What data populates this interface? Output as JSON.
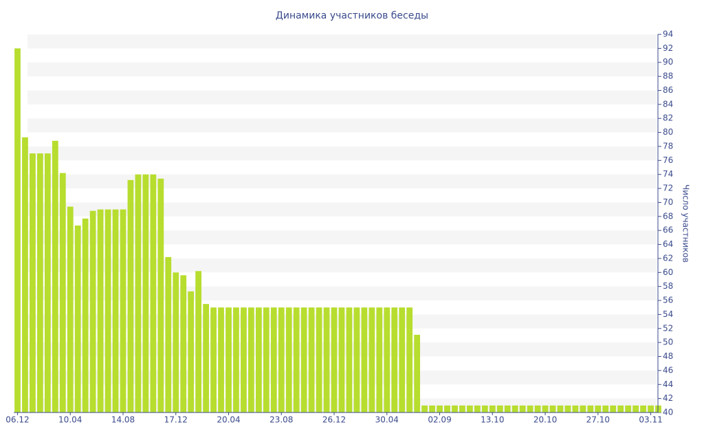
{
  "chart_data": {
    "type": "bar",
    "title": "Динамика участников беседы",
    "y_label": "Число участников",
    "color": "#b7dd2f",
    "grid": "bands",
    "categories": [
      "06.12",
      null,
      null,
      null,
      null,
      null,
      null,
      "10.04",
      null,
      null,
      null,
      null,
      null,
      null,
      "14.08",
      null,
      null,
      null,
      null,
      null,
      null,
      "17.12",
      null,
      null,
      null,
      null,
      null,
      null,
      "20.04",
      null,
      null,
      null,
      null,
      null,
      null,
      "23.08",
      null,
      null,
      null,
      null,
      null,
      null,
      "26.12",
      null,
      null,
      null,
      null,
      null,
      null,
      "30.04",
      null,
      null,
      null,
      null,
      null,
      null,
      "02.09",
      null,
      null,
      null,
      null,
      null,
      null,
      "13.10",
      null,
      null,
      null,
      null,
      null,
      null,
      "20.10",
      null,
      null,
      null,
      null,
      null,
      null,
      "27.10",
      null,
      null,
      null,
      null,
      null,
      null,
      "03.11",
      null
    ],
    "values": [
      92,
      79.3,
      77,
      77,
      77,
      78.8,
      74.2,
      69.4,
      66.7,
      67.7,
      68.8,
      69,
      69,
      69,
      69,
      73.2,
      74,
      74,
      74,
      73.4,
      62.2,
      60,
      59.6,
      57.3,
      60.2,
      55.5,
      55,
      55,
      55,
      55,
      55,
      55,
      55,
      55,
      55,
      55,
      55,
      55,
      55,
      55,
      55,
      55,
      55,
      55,
      55,
      55,
      55,
      55,
      55,
      55,
      55,
      55,
      55,
      51.1,
      41,
      41,
      41,
      41,
      41,
      41,
      41,
      41,
      41,
      41,
      41,
      41,
      41,
      41,
      41,
      41,
      41,
      41,
      41,
      41,
      41,
      41,
      41,
      41,
      41,
      41,
      41,
      41,
      41,
      41,
      41,
      41
    ],
    "ylim": [
      40,
      94
    ],
    "yticks": [
      40,
      42,
      44,
      46,
      48,
      50,
      52,
      54,
      56,
      58,
      60,
      62,
      64,
      66,
      68,
      70,
      72,
      74,
      76,
      78,
      80,
      82,
      84,
      86,
      88,
      90,
      92,
      94
    ]
  }
}
